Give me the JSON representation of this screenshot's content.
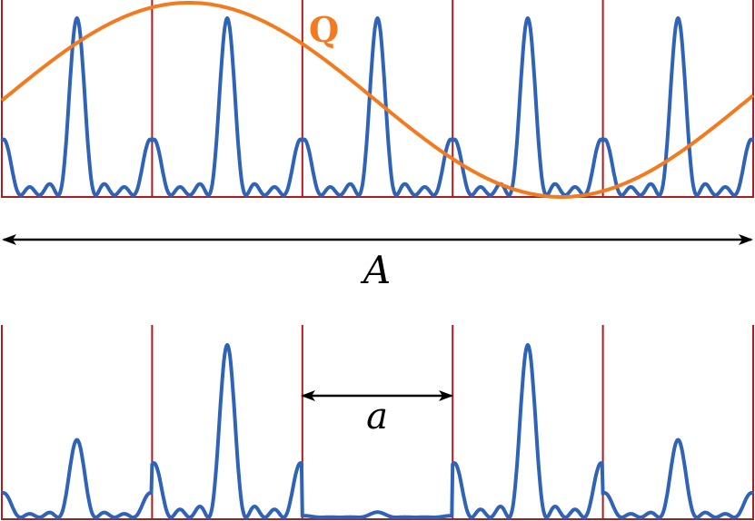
{
  "colors": {
    "wave": "#2f63b8",
    "envelope": "#f47a1f",
    "cell_border": "#b01c1c",
    "arrow": "#000000",
    "background": "#ffffff"
  },
  "labels": {
    "Q": "Q",
    "A": "A",
    "a": "a"
  },
  "top_panel": {
    "cell_count": 5,
    "envelope_curve_name": "Q"
  },
  "bottom_panel": {
    "cell_count": 5,
    "cell_weights": [
      0.45,
      1.0,
      0.03,
      1.0,
      0.45
    ]
  },
  "icons": {
    "arrow_left": "arrowhead-left-icon",
    "arrow_right": "arrowhead-right-icon"
  }
}
